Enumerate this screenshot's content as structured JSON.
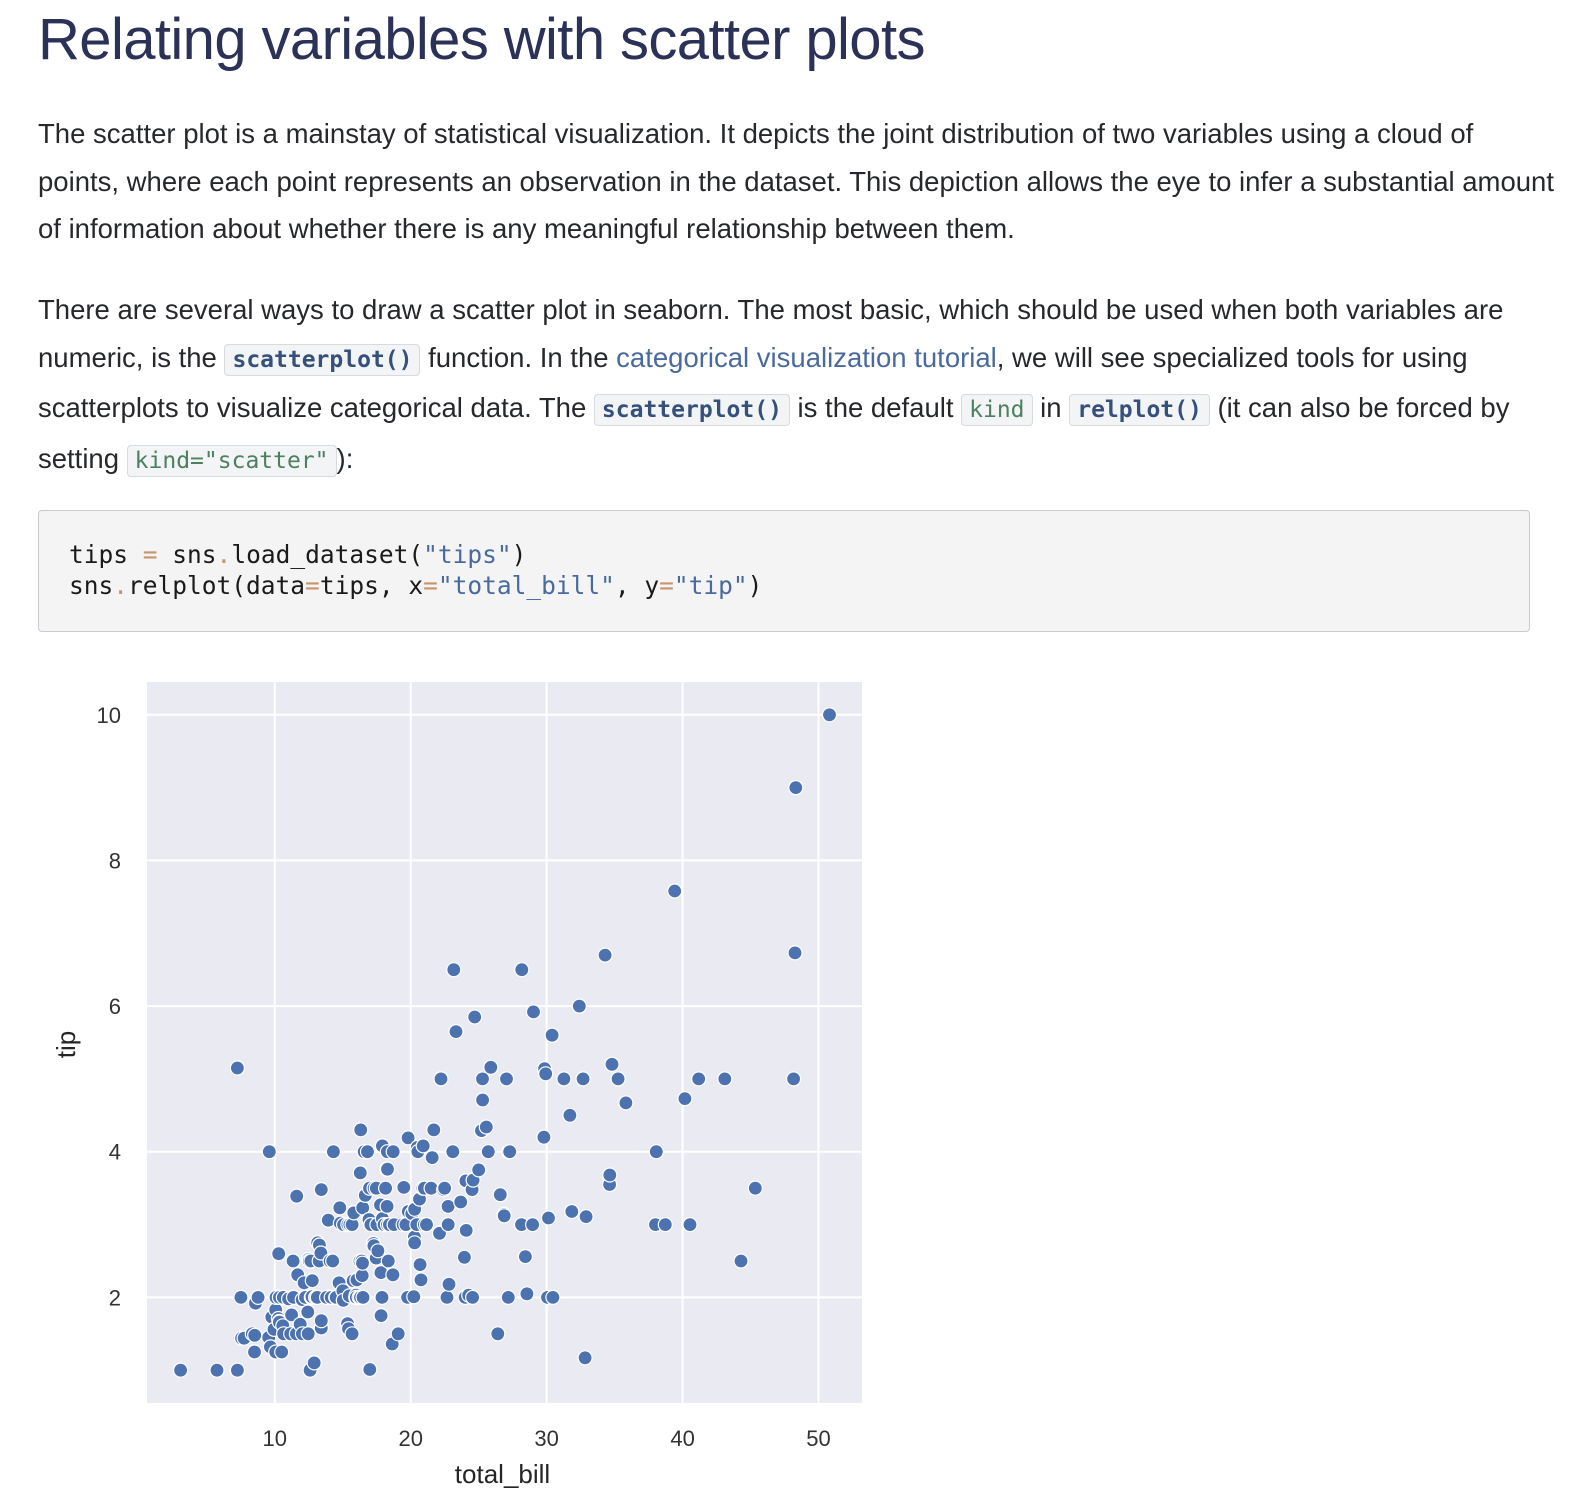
{
  "page_title": "Relating variables with scatter plots",
  "para1": "The scatter plot is a mainstay of statistical visualization. It depicts the joint distribution of two variables using a cloud of points, where each point represents an observation in the dataset. This depiction allows the eye to infer a substantial amount of information about whether there is any meaningful relationship between them.",
  "para2": {
    "t1": "There are several ways to draw a scatter plot in seaborn. The most basic, which should be used when both variables are numeric, is the ",
    "code1": "scatterplot()",
    "t2": " function. In the ",
    "link": "categorical visualization tutorial",
    "t3": ", we will see specialized tools for using scatterplots to visualize categorical data. The ",
    "code2": "scatterplot()",
    "t4": " is the default ",
    "code3": "kind",
    "t5": " in ",
    "code4": "relplot()",
    "t6": " (it can also be forced by setting ",
    "code5": "kind=\"scatter\"",
    "t7": "):"
  },
  "code": {
    "l1_a": "tips ",
    "l1_eq": "=",
    "l1_b": " sns",
    "l1_dot": ".",
    "l1_c": "load_dataset(",
    "l1_str": "\"tips\"",
    "l1_d": ")",
    "l2_a": "sns",
    "l2_dot": ".",
    "l2_b": "relplot(data",
    "l2_eq1": "=",
    "l2_c": "tips, x",
    "l2_eq2": "=",
    "l2_str1": "\"total_bill\"",
    "l2_d": ", y",
    "l2_eq3": "=",
    "l2_str2": "\"tip\"",
    "l2_e": ")"
  },
  "chart_data": {
    "type": "scatter",
    "xlabel": "total_bill",
    "ylabel": "tip",
    "xlim": [
      0.6,
      53.2
    ],
    "ylim": [
      0.55,
      10.45
    ],
    "xticks": [
      10,
      20,
      30,
      40,
      50
    ],
    "yticks": [
      2,
      4,
      6,
      8,
      10
    ],
    "grid": true,
    "colors": {
      "point": "#4c72b0",
      "edge": "#ffffff",
      "bg": "#eaeaf2",
      "grid": "#ffffff",
      "tick_label": "#333333"
    },
    "points": [
      [
        3.07,
        1.0
      ],
      [
        5.75,
        1.0
      ],
      [
        7.25,
        1.0
      ],
      [
        7.25,
        5.15
      ],
      [
        7.51,
        2.0
      ],
      [
        7.56,
        1.44
      ],
      [
        7.74,
        1.44
      ],
      [
        8.35,
        1.5
      ],
      [
        8.51,
        1.25
      ],
      [
        8.52,
        1.48
      ],
      [
        8.58,
        1.92
      ],
      [
        8.77,
        2.0
      ],
      [
        9.55,
        1.45
      ],
      [
        9.6,
        4.0
      ],
      [
        9.68,
        1.32
      ],
      [
        9.78,
        1.73
      ],
      [
        9.94,
        1.56
      ],
      [
        10.07,
        1.25
      ],
      [
        10.07,
        1.83
      ],
      [
        10.09,
        2.0
      ],
      [
        10.27,
        1.71
      ],
      [
        10.29,
        2.6
      ],
      [
        10.33,
        1.67
      ],
      [
        10.34,
        2.0
      ],
      [
        10.34,
        1.66
      ],
      [
        10.51,
        1.25
      ],
      [
        10.59,
        1.61
      ],
      [
        10.63,
        2.0
      ],
      [
        10.65,
        1.5
      ],
      [
        11.02,
        1.98
      ],
      [
        11.17,
        1.5
      ],
      [
        11.24,
        1.76
      ],
      [
        11.35,
        2.5
      ],
      [
        11.38,
        2.0
      ],
      [
        11.59,
        1.5
      ],
      [
        11.61,
        3.39
      ],
      [
        11.69,
        2.31
      ],
      [
        11.87,
        1.63
      ],
      [
        12.02,
        1.97
      ],
      [
        12.03,
        1.5
      ],
      [
        12.16,
        2.2
      ],
      [
        12.26,
        2.0
      ],
      [
        12.43,
        1.8
      ],
      [
        12.46,
        1.5
      ],
      [
        12.48,
        2.52
      ],
      [
        12.54,
        2.5
      ],
      [
        12.6,
        1.0
      ],
      [
        12.66,
        2.5
      ],
      [
        12.69,
        2.0
      ],
      [
        12.74,
        2.01
      ],
      [
        12.76,
        2.23
      ],
      [
        12.9,
        1.1
      ],
      [
        13.0,
        2.0
      ],
      [
        13.03,
        2.0
      ],
      [
        13.13,
        2.0
      ],
      [
        13.16,
        2.75
      ],
      [
        13.27,
        2.5
      ],
      [
        13.28,
        2.72
      ],
      [
        13.39,
        2.61
      ],
      [
        13.42,
        1.58
      ],
      [
        13.42,
        3.48
      ],
      [
        13.42,
        1.68
      ],
      [
        13.81,
        2.0
      ],
      [
        13.94,
        3.06
      ],
      [
        14.07,
        2.5
      ],
      [
        14.15,
        2.0
      ],
      [
        14.26,
        2.5
      ],
      [
        14.31,
        4.0
      ],
      [
        14.48,
        2.0
      ],
      [
        14.52,
        2.0
      ],
      [
        14.73,
        2.2
      ],
      [
        14.78,
        3.23
      ],
      [
        14.83,
        3.02
      ],
      [
        15.01,
        2.09
      ],
      [
        15.04,
        1.96
      ],
      [
        15.06,
        3.0
      ],
      [
        15.36,
        1.64
      ],
      [
        15.38,
        3.0
      ],
      [
        15.42,
        1.57
      ],
      [
        15.48,
        2.02
      ],
      [
        15.53,
        3.0
      ],
      [
        15.69,
        1.5
      ],
      [
        15.69,
        3.0
      ],
      [
        15.77,
        2.23
      ],
      [
        15.81,
        3.16
      ],
      [
        15.95,
        2.0
      ],
      [
        15.98,
        2.03
      ],
      [
        16.0,
        2.0
      ],
      [
        16.04,
        2.24
      ],
      [
        16.21,
        2.0
      ],
      [
        16.27,
        2.5
      ],
      [
        16.29,
        3.71
      ],
      [
        16.31,
        2.0
      ],
      [
        16.32,
        4.3
      ],
      [
        16.4,
        2.5
      ],
      [
        16.43,
        2.3
      ],
      [
        16.45,
        2.47
      ],
      [
        16.47,
        3.23
      ],
      [
        16.49,
        2.0
      ],
      [
        16.58,
        4.0
      ],
      [
        16.66,
        3.4
      ],
      [
        16.82,
        4.0
      ],
      [
        16.93,
        3.07
      ],
      [
        16.97,
        3.5
      ],
      [
        16.99,
        1.01
      ],
      [
        17.07,
        3.0
      ],
      [
        17.26,
        2.74
      ],
      [
        17.29,
        2.71
      ],
      [
        17.31,
        3.5
      ],
      [
        17.46,
        2.54
      ],
      [
        17.47,
        3.5
      ],
      [
        17.51,
        3.0
      ],
      [
        17.59,
        2.64
      ],
      [
        17.78,
        3.27
      ],
      [
        17.81,
        2.34
      ],
      [
        17.82,
        1.75
      ],
      [
        17.89,
        2.0
      ],
      [
        17.92,
        4.08
      ],
      [
        17.92,
        3.08
      ],
      [
        18.04,
        3.0
      ],
      [
        18.15,
        3.5
      ],
      [
        18.24,
        3.76
      ],
      [
        18.26,
        3.25
      ],
      [
        18.28,
        4.0
      ],
      [
        18.29,
        3.76
      ],
      [
        18.29,
        3.0
      ],
      [
        18.35,
        2.5
      ],
      [
        18.43,
        3.0
      ],
      [
        18.64,
        1.36
      ],
      [
        18.69,
        2.31
      ],
      [
        18.71,
        4.0
      ],
      [
        18.78,
        3.0
      ],
      [
        19.08,
        1.5
      ],
      [
        19.44,
        3.0
      ],
      [
        19.49,
        3.51
      ],
      [
        19.65,
        3.0
      ],
      [
        19.77,
        2.0
      ],
      [
        19.81,
        4.19
      ],
      [
        19.82,
        3.18
      ],
      [
        20.08,
        3.15
      ],
      [
        20.23,
        2.01
      ],
      [
        20.27,
        2.83
      ],
      [
        20.29,
        2.75
      ],
      [
        20.29,
        3.21
      ],
      [
        20.45,
        3.0
      ],
      [
        20.49,
        4.06
      ],
      [
        20.53,
        4.0
      ],
      [
        20.65,
        3.35
      ],
      [
        20.69,
        2.45
      ],
      [
        20.76,
        2.24
      ],
      [
        20.9,
        3.5
      ],
      [
        20.92,
        4.08
      ],
      [
        21.01,
        3.5
      ],
      [
        21.01,
        3.0
      ],
      [
        21.16,
        3.0
      ],
      [
        21.5,
        3.5
      ],
      [
        21.58,
        3.92
      ],
      [
        21.7,
        4.3
      ],
      [
        22.12,
        2.88
      ],
      [
        22.23,
        5.0
      ],
      [
        22.42,
        3.48
      ],
      [
        22.49,
        3.5
      ],
      [
        22.67,
        2.0
      ],
      [
        22.75,
        3.25
      ],
      [
        22.76,
        3.0
      ],
      [
        22.82,
        2.18
      ],
      [
        23.1,
        4.0
      ],
      [
        23.17,
        6.5
      ],
      [
        23.33,
        5.65
      ],
      [
        23.68,
        3.31
      ],
      [
        23.95,
        2.55
      ],
      [
        24.01,
        2.0
      ],
      [
        24.06,
        3.6
      ],
      [
        24.08,
        2.92
      ],
      [
        24.27,
        2.03
      ],
      [
        24.52,
        3.48
      ],
      [
        24.55,
        2.0
      ],
      [
        24.59,
        3.61
      ],
      [
        24.71,
        5.85
      ],
      [
        25.0,
        3.75
      ],
      [
        25.21,
        4.29
      ],
      [
        25.28,
        5.0
      ],
      [
        25.29,
        4.71
      ],
      [
        25.56,
        4.34
      ],
      [
        25.71,
        4.0
      ],
      [
        25.89,
        5.16
      ],
      [
        26.41,
        1.5
      ],
      [
        26.59,
        3.41
      ],
      [
        26.86,
        3.14
      ],
      [
        26.88,
        3.12
      ],
      [
        27.05,
        5.0
      ],
      [
        27.18,
        2.0
      ],
      [
        27.2,
        4.0
      ],
      [
        27.28,
        4.0
      ],
      [
        28.15,
        3.0
      ],
      [
        28.17,
        6.5
      ],
      [
        28.44,
        2.56
      ],
      [
        28.55,
        2.05
      ],
      [
        28.97,
        3.0
      ],
      [
        29.03,
        5.92
      ],
      [
        29.8,
        4.2
      ],
      [
        29.85,
        5.14
      ],
      [
        29.93,
        5.07
      ],
      [
        30.06,
        2.0
      ],
      [
        30.14,
        3.09
      ],
      [
        30.4,
        5.6
      ],
      [
        30.46,
        2.0
      ],
      [
        31.27,
        5.0
      ],
      [
        31.71,
        4.5
      ],
      [
        31.85,
        3.18
      ],
      [
        32.4,
        6.0
      ],
      [
        32.68,
        5.0
      ],
      [
        32.83,
        1.17
      ],
      [
        32.9,
        3.11
      ],
      [
        34.3,
        6.7
      ],
      [
        34.63,
        3.55
      ],
      [
        34.65,
        3.68
      ],
      [
        34.81,
        5.2
      ],
      [
        35.26,
        5.0
      ],
      [
        35.83,
        4.67
      ],
      [
        38.01,
        3.0
      ],
      [
        38.07,
        4.0
      ],
      [
        38.73,
        3.0
      ],
      [
        39.42,
        7.58
      ],
      [
        40.17,
        4.73
      ],
      [
        40.55,
        3.0
      ],
      [
        41.19,
        5.0
      ],
      [
        43.11,
        5.0
      ],
      [
        44.3,
        2.5
      ],
      [
        45.35,
        3.5
      ],
      [
        48.17,
        5.0
      ],
      [
        48.27,
        6.73
      ],
      [
        48.33,
        9.0
      ],
      [
        50.81,
        10.0
      ]
    ]
  }
}
